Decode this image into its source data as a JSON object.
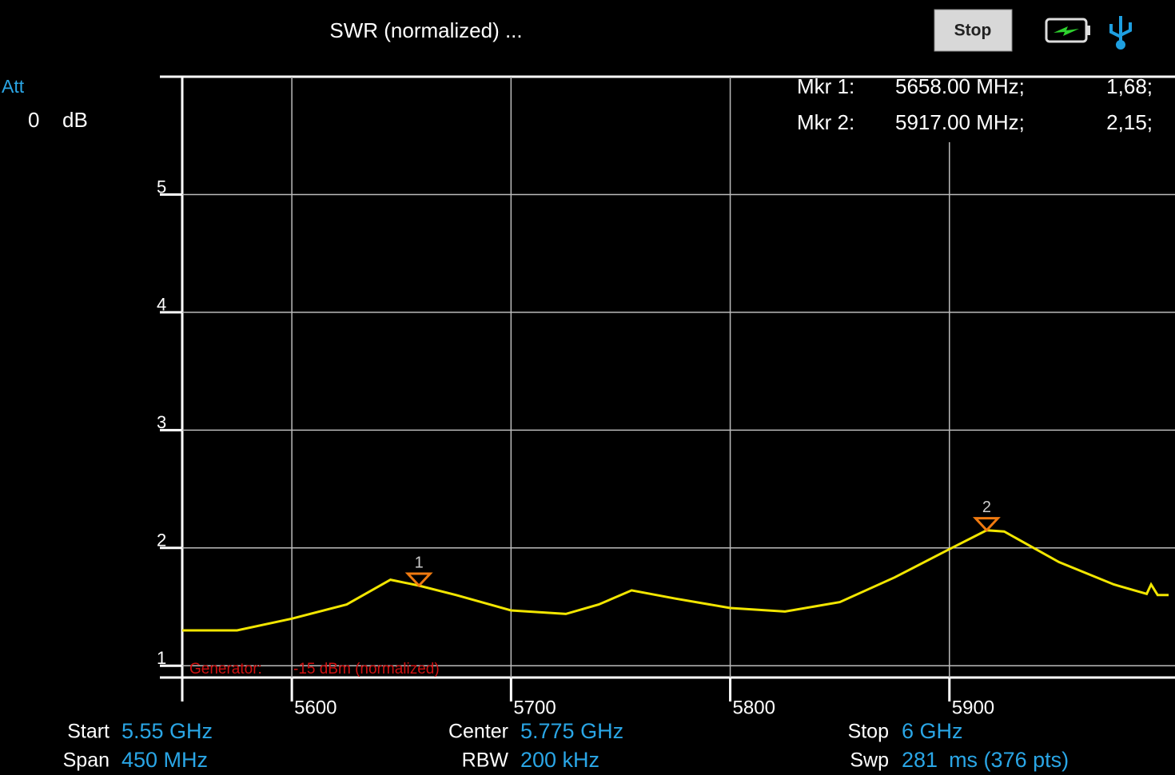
{
  "header": {
    "title": "SWR (normalized) ...",
    "button": "Stop"
  },
  "attenuation": {
    "label": "Att",
    "value": "0",
    "unit": "dB"
  },
  "chart_data": {
    "type": "line",
    "x": [
      5550,
      5575,
      5600,
      5625,
      5645,
      5658,
      5675,
      5700,
      5725,
      5740,
      5755,
      5775,
      5800,
      5825,
      5850,
      5875,
      5900,
      5917,
      5925,
      5950,
      5975,
      5990,
      5992,
      5995,
      6000
    ],
    "values": [
      1.3,
      1.3,
      1.4,
      1.52,
      1.73,
      1.68,
      1.6,
      1.47,
      1.44,
      1.52,
      1.64,
      1.57,
      1.49,
      1.46,
      1.54,
      1.75,
      1.99,
      2.15,
      2.14,
      1.88,
      1.69,
      1.61,
      1.69,
      1.6,
      1.6
    ],
    "color": "#f2e600",
    "xlim": [
      5550,
      6000
    ],
    "ylim": [
      0.9,
      6
    ],
    "xticks": [
      5600,
      5700,
      5800,
      5900
    ],
    "yticks": [
      1,
      2,
      3,
      4,
      5
    ],
    "grid": true,
    "markers": [
      {
        "tag": "1",
        "name": "Mkr 1:",
        "x": 5658,
        "x_label": "5658.00 MHz;",
        "value": 1.68,
        "value_label": "1,68;"
      },
      {
        "tag": "2",
        "name": "Mkr 2:",
        "x": 5917,
        "x_label": "5917.00 MHz;",
        "value": 2.15,
        "value_label": "2,15;"
      }
    ],
    "annotation": {
      "label": "Generator:",
      "text": "-15 dBm (normalized)"
    }
  },
  "footer": {
    "items": [
      {
        "label": "Start",
        "value": "5.55 GHz"
      },
      {
        "label": "Span",
        "value": "450 MHz"
      },
      {
        "label": "Center",
        "value": "5.775 GHz"
      },
      {
        "label": "RBW",
        "value": "200 kHz"
      },
      {
        "label": "Stop",
        "value": "6 GHz"
      },
      {
        "label": "Swp",
        "value": "281",
        "unit": "ms (376 pts)"
      }
    ]
  }
}
